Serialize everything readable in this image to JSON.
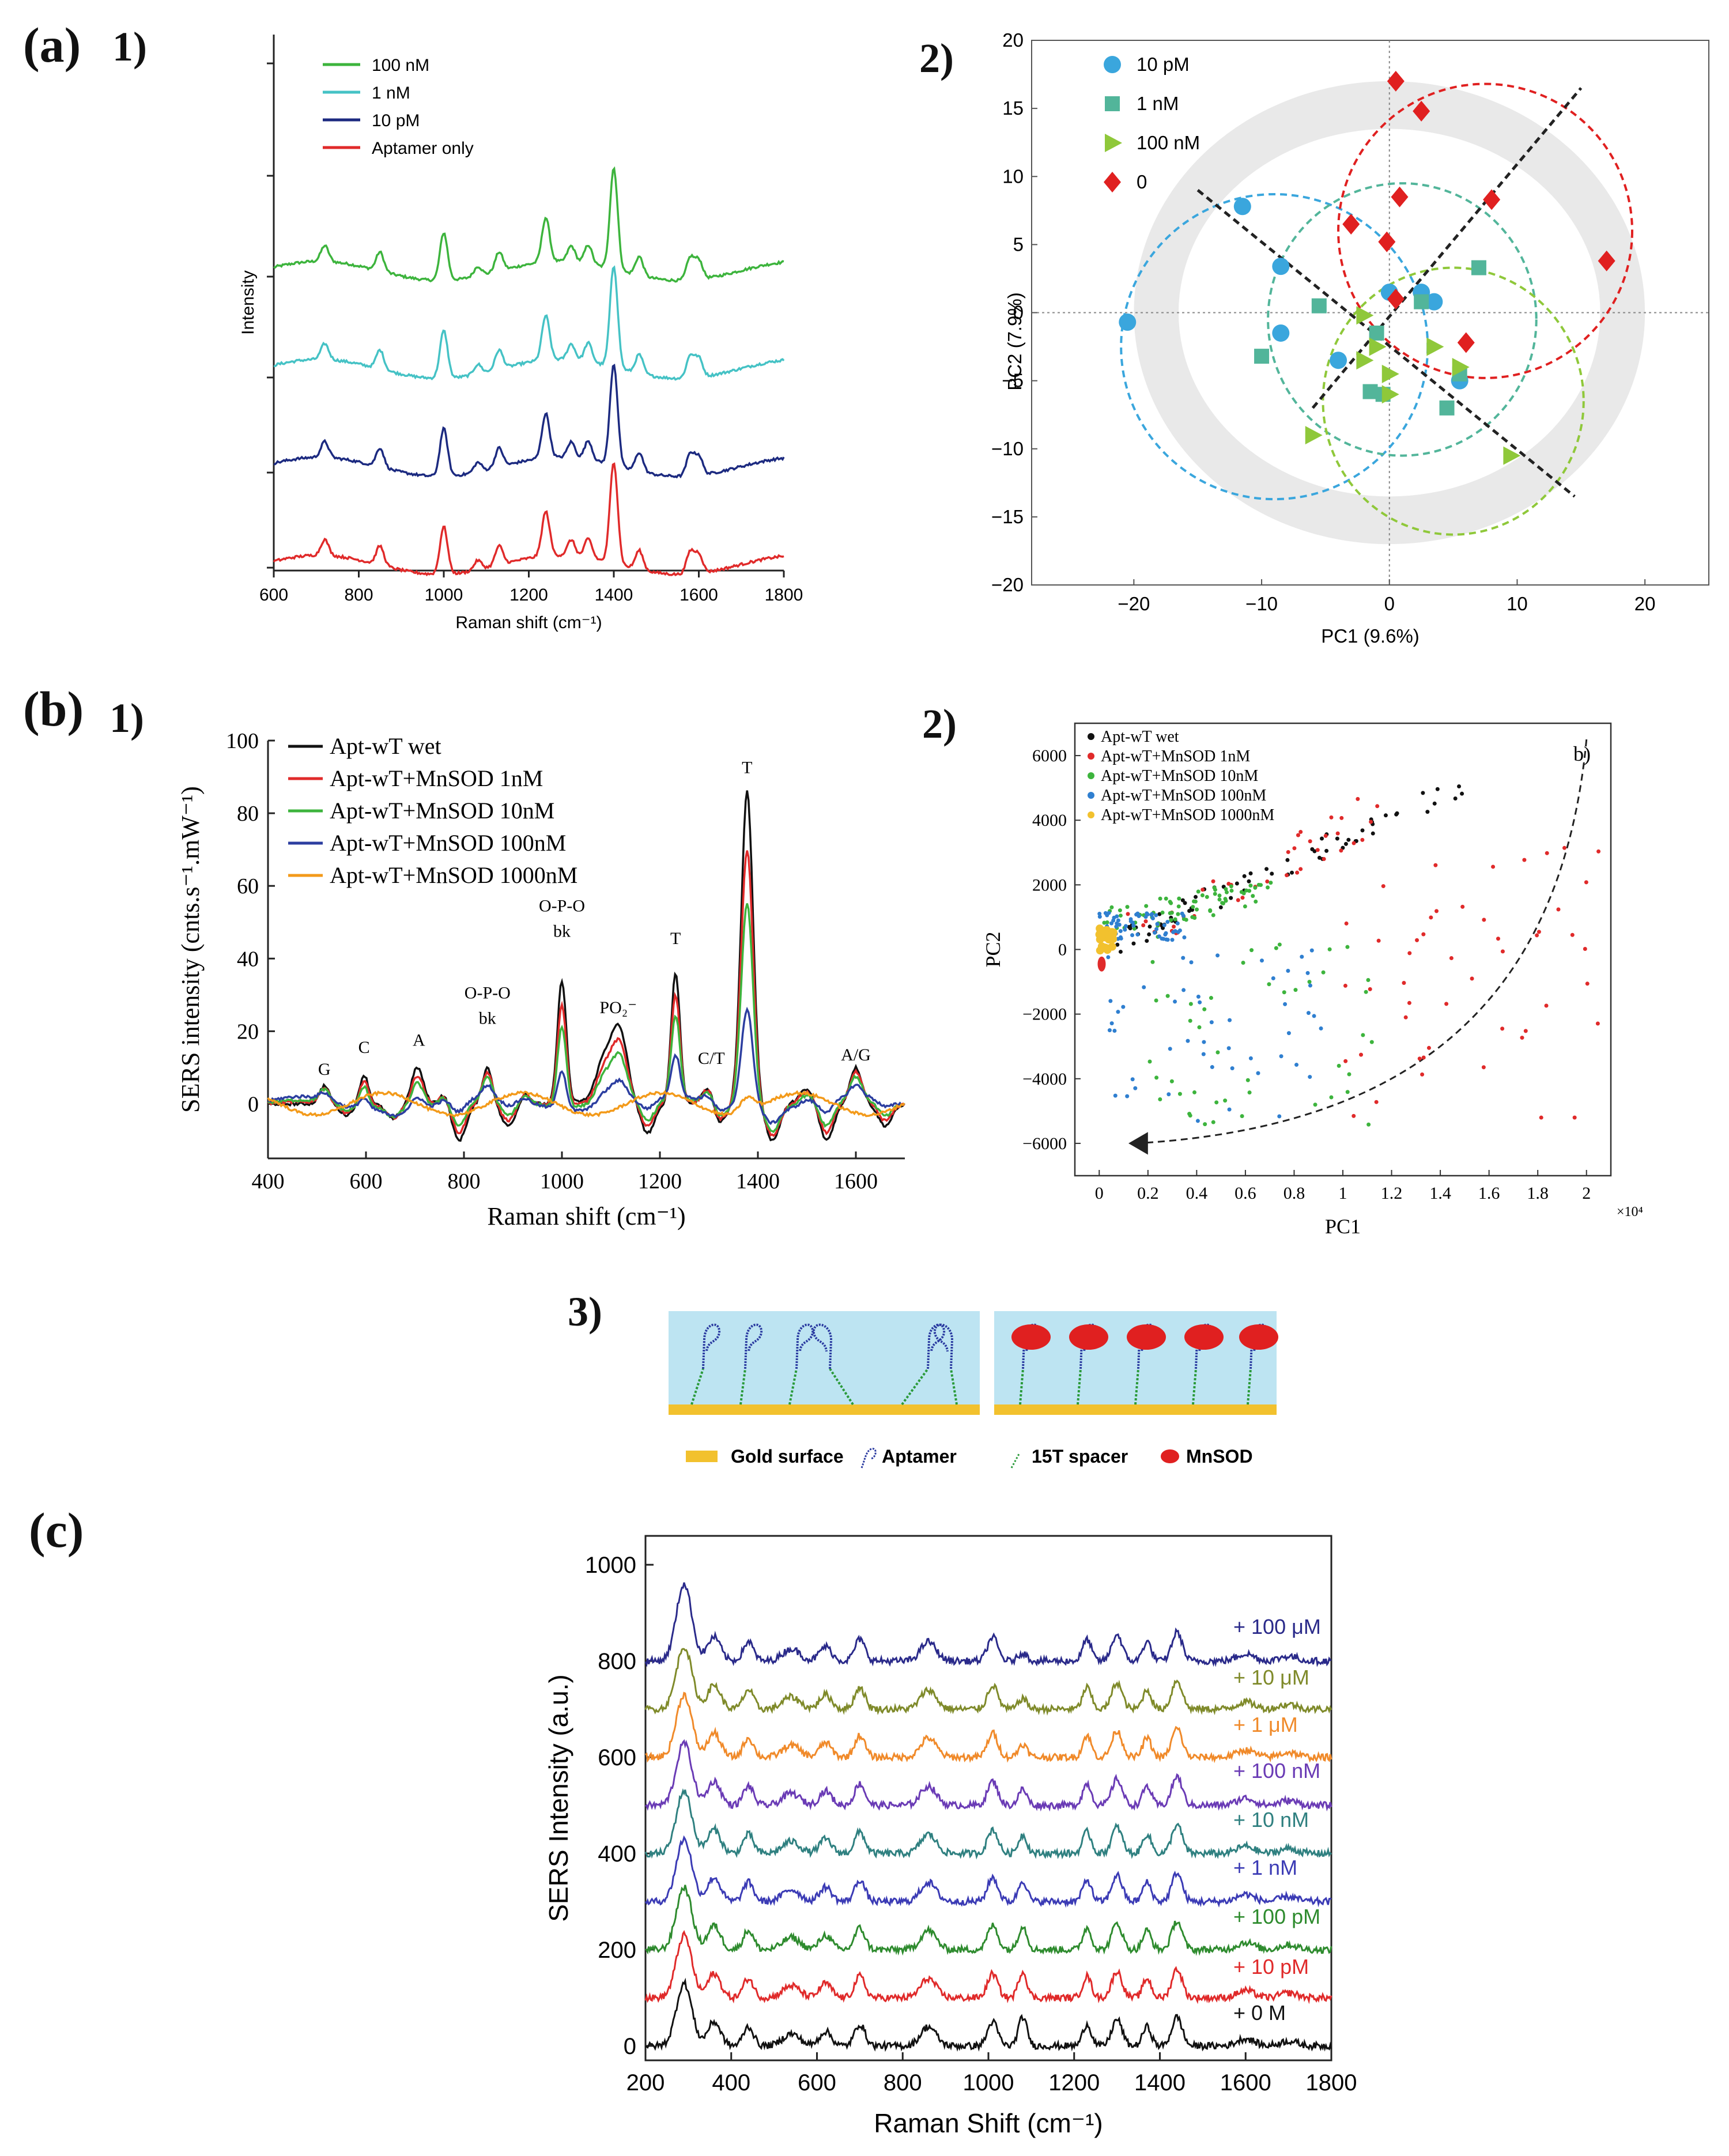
{
  "panel_labels": {
    "a": "(a)",
    "b": "(b)",
    "c": "(c)",
    "a1": "1)",
    "a2": "2)",
    "b1": "1)",
    "b2": "2)",
    "b3": "3)"
  },
  "colors": {
    "green": "#3db43d",
    "cyan": "#45c2c5",
    "navy": "#1c2a80",
    "red": "#e02a2a",
    "black": "#111111",
    "blue": "#2f6fd0",
    "orange": "#f39a1a",
    "yellow": "#f2c12e",
    "pcaBlue": "#3aa6dd",
    "pcaTeal": "#52b59a",
    "pcaLime": "#8fc83a",
    "pcaRed": "#e02020"
  },
  "chart_data": [
    {
      "id": "a1",
      "type": "line",
      "title": "",
      "xlabel": "Raman shift (cm⁻¹)",
      "ylabel": "Intensity",
      "xlim": [
        600,
        1800
      ],
      "xticks": [
        600,
        800,
        1000,
        1200,
        1400,
        1600,
        1800
      ],
      "series": [
        {
          "name": "100 nM",
          "offset": 3,
          "color": "#3db43d"
        },
        {
          "name": "1 nM",
          "offset": 2,
          "color": "#45c2c5"
        },
        {
          "name": "10 pM",
          "offset": 1,
          "color": "#1c2a80"
        },
        {
          "name": "Aptamer only",
          "offset": 0,
          "color": "#e02a2a"
        }
      ],
      "peaks": [
        [
          720,
          0.25
        ],
        [
          850,
          0.3
        ],
        [
          1000,
          0.75
        ],
        [
          1080,
          0.15
        ],
        [
          1130,
          0.3
        ],
        [
          1240,
          0.7
        ],
        [
          1300,
          0.25
        ],
        [
          1340,
          0.3
        ],
        [
          1400,
          1.6
        ],
        [
          1460,
          0.3
        ],
        [
          1580,
          0.35
        ],
        [
          1600,
          0.3
        ]
      ],
      "legend": [
        "100 nM",
        "1 nM",
        "10 pM",
        "Aptamer only"
      ]
    },
    {
      "id": "a2",
      "type": "scatter",
      "xlabel": "PC1 (9.6%)",
      "ylabel": "PC2 (7.9%)",
      "xlim": [
        -28,
        25
      ],
      "ylim": [
        -20,
        20
      ],
      "xticks": [
        -20,
        -10,
        0,
        10,
        20
      ],
      "yticks": [
        -20,
        -15,
        -10,
        -5,
        0,
        5,
        10,
        15,
        20
      ],
      "series": [
        {
          "name": "10 pM",
          "marker": "circle",
          "color": "#3aa6dd",
          "points": [
            [
              -20.5,
              -0.7
            ],
            [
              -11.5,
              7.8
            ],
            [
              -8.5,
              3.4
            ],
            [
              -8.5,
              -1.5
            ],
            [
              -4,
              -3.5
            ],
            [
              0,
              1.5
            ],
            [
              2.5,
              1.5
            ],
            [
              3.5,
              0.8
            ],
            [
              5.5,
              -5
            ]
          ]
        },
        {
          "name": "1 nM",
          "marker": "square",
          "color": "#52b59a",
          "points": [
            [
              -5.5,
              0.5
            ],
            [
              -10,
              -3.2
            ],
            [
              -1,
              -1.5
            ],
            [
              -1.5,
              -5.8
            ],
            [
              -0.5,
              -6
            ],
            [
              2.5,
              0.8
            ],
            [
              7,
              3.3
            ],
            [
              4.5,
              -7
            ],
            [
              5.5,
              -4.5
            ]
          ]
        },
        {
          "name": "100 nM",
          "marker": "triangle",
          "color": "#8fc83a",
          "points": [
            [
              -6,
              -9
            ],
            [
              -2,
              -3.5
            ],
            [
              -2,
              -0.2
            ],
            [
              0,
              -4.5
            ],
            [
              0,
              -6
            ],
            [
              3.5,
              -2.5
            ],
            [
              5.5,
              -4
            ],
            [
              9.5,
              -10.5
            ],
            [
              -1,
              -2.5
            ]
          ]
        },
        {
          "name": "0",
          "marker": "diamond",
          "color": "#e02020",
          "points": [
            [
              0.5,
              17
            ],
            [
              2.5,
              14.8
            ],
            [
              0.8,
              8.5
            ],
            [
              8,
              8.3
            ],
            [
              -3,
              6.5
            ],
            [
              -0.2,
              5.2
            ],
            [
              17,
              3.8
            ],
            [
              0.5,
              1
            ],
            [
              6,
              -2.2
            ]
          ]
        }
      ],
      "ellipses": [
        {
          "cx": -9,
          "cy": -2.5,
          "rx": 12,
          "ry": 11.2,
          "color": "#3aa6dd"
        },
        {
          "cx": 1,
          "cy": -0.5,
          "rx": 10.5,
          "ry": 10,
          "color": "#52b59a"
        },
        {
          "cx": 5,
          "cy": -6.5,
          "rx": 10.2,
          "ry": 9.8,
          "color": "#8fc83a"
        },
        {
          "cx": 7.5,
          "cy": 6,
          "rx": 11.5,
          "ry": 10.8,
          "color": "#e02020"
        }
      ],
      "legend": [
        "10 pM",
        "1 nM",
        "100 nM",
        "0"
      ]
    },
    {
      "id": "b1",
      "type": "line",
      "xlabel": "Raman shift (cm⁻¹)",
      "ylabel": "SERS intensity (cnts.s⁻¹.mW⁻¹)",
      "xlim": [
        400,
        1700
      ],
      "ylim": [
        -15,
        100
      ],
      "xticks": [
        400,
        600,
        800,
        1000,
        1200,
        1400,
        1600
      ],
      "yticks": [
        0,
        20,
        40,
        60,
        80,
        100
      ],
      "series": [
        {
          "name": "Apt-wT wet",
          "color": "#111111",
          "scale": 1.0
        },
        {
          "name": "Apt-wT+MnSOD 1nM",
          "color": "#e02a2a",
          "scale": 0.82
        },
        {
          "name": "Apt-wT+MnSOD 10nM",
          "color": "#3db43d",
          "scale": 0.65
        },
        {
          "name": "Apt-wT+MnSOD 100nM",
          "color": "#2c3ea0",
          "scale": 0.32
        },
        {
          "name": "Apt-wT+MnSOD 1000nM",
          "color": "#f39a1a",
          "scale": 0.08
        }
      ],
      "annotations": [
        {
          "text": "G",
          "x": 515,
          "y": 8
        },
        {
          "text": "C",
          "x": 596,
          "y": 14
        },
        {
          "text": "A",
          "x": 708,
          "y": 16
        },
        {
          "text": "O-P-O",
          "x": 848,
          "y": 29
        },
        {
          "text": "bk",
          "x": 848,
          "y": 22
        },
        {
          "text": "O-P-O",
          "x": 1000,
          "y": 53
        },
        {
          "text": "bk",
          "x": 1000,
          "y": 46
        },
        {
          "text": "PO₂⁻",
          "x": 1115,
          "y": 25
        },
        {
          "text": "T",
          "x": 1232,
          "y": 44
        },
        {
          "text": "C/T",
          "x": 1305,
          "y": 11
        },
        {
          "text": "T",
          "x": 1378,
          "y": 91
        },
        {
          "text": "A/G",
          "x": 1600,
          "y": 12
        }
      ]
    },
    {
      "id": "b2",
      "type": "scatter",
      "xlabel": "PC1",
      "ylabel": "PC2",
      "xunit": "×10⁴",
      "inner_label": "b)",
      "xlim": [
        -0.1,
        2.1
      ],
      "ylim": [
        -7000,
        7000
      ],
      "xticks": [
        "0",
        "0.2",
        "0.4",
        "0.6",
        "0.8",
        "1",
        "1.2",
        "1.4",
        "1.6",
        "1.8",
        "2"
      ],
      "yticks": [
        "6000",
        "4000",
        "2000",
        "0",
        "-2000",
        "-4000",
        "-6000"
      ],
      "series": [
        {
          "name": "Apt-wT wet",
          "color": "#111111"
        },
        {
          "name": "Apt-wT+MnSOD 1nM",
          "color": "#e02a2a"
        },
        {
          "name": "Apt-wT+MnSOD 10nM",
          "color": "#3db43d"
        },
        {
          "name": "Apt-wT+MnSOD 100nM",
          "color": "#2f7fd0"
        },
        {
          "name": "Apt-wT+MnSOD 1000nM",
          "color": "#f2c12e"
        }
      ]
    },
    {
      "id": "c",
      "type": "line",
      "xlabel": "Raman Shift (cm⁻¹)",
      "ylabel": "SERS Intensity (a.u.)",
      "xlim": [
        200,
        1800
      ],
      "ylim": [
        -30,
        1060
      ],
      "xticks": [
        200,
        400,
        600,
        800,
        1000,
        1200,
        1400,
        1600,
        1800
      ],
      "yticks": [
        0,
        200,
        400,
        600,
        800,
        1000
      ],
      "series": [
        {
          "name": "+ 0 M",
          "baseline": 0,
          "color": "#111111"
        },
        {
          "name": "+ 10 pM",
          "baseline": 100,
          "color": "#e02a2a"
        },
        {
          "name": "+ 100 pM",
          "baseline": 200,
          "color": "#2e8b2e"
        },
        {
          "name": "+ 1 nM",
          "baseline": 300,
          "color": "#3b3bb5"
        },
        {
          "name": "+ 10 nM",
          "baseline": 400,
          "color": "#2f8080"
        },
        {
          "name": "+ 100 nM",
          "baseline": 500,
          "color": "#6a3bb5"
        },
        {
          "name": "+ 1 μM",
          "baseline": 600,
          "color": "#f08a2a"
        },
        {
          "name": "+ 10 μM",
          "baseline": 700,
          "color": "#7f8a2a"
        },
        {
          "name": "+ 100 μM",
          "baseline": 800,
          "color": "#2a2a8a"
        }
      ]
    }
  ],
  "schematic": {
    "legend": [
      {
        "name": "gold-surface",
        "label": "Gold surface"
      },
      {
        "name": "aptamer",
        "label": "Aptamer"
      },
      {
        "name": "spacer",
        "label": "15T spacer"
      },
      {
        "name": "mnsod",
        "label": "MnSOD"
      }
    ]
  }
}
